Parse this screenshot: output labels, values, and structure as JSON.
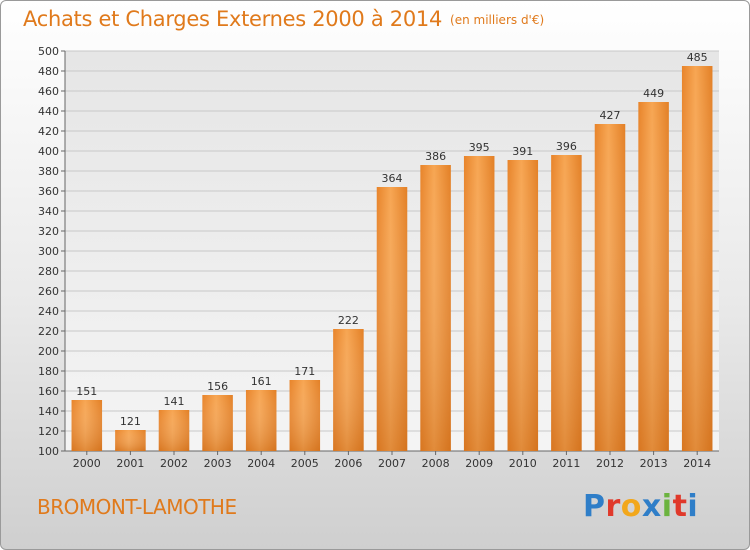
{
  "title": "Achats et Charges Externes 2000 à 2014",
  "unit_note": "(en milliers d'€)",
  "commune": "BROMONT-LAMOTHE",
  "logo": {
    "text": "Proxiti",
    "colors": [
      "#2f7ec8",
      "#e0392b",
      "#f2a71b",
      "#2f7ec8",
      "#6cb33f",
      "#e0392b",
      "#2f7ec8"
    ]
  },
  "colors": {
    "accent": "#e07a1c",
    "bar_light": "#f9ad5c",
    "bar_dark": "#d46a12",
    "grid": "#c8c8c8"
  },
  "chart_data": {
    "type": "bar",
    "categories": [
      "2000",
      "2001",
      "2002",
      "2003",
      "2004",
      "2005",
      "2006",
      "2007",
      "2008",
      "2009",
      "2010",
      "2011",
      "2012",
      "2013",
      "2014"
    ],
    "values": [
      151,
      121,
      141,
      156,
      161,
      171,
      222,
      364,
      386,
      395,
      391,
      396,
      427,
      449,
      485
    ],
    "ylim": [
      100,
      500
    ],
    "yticks": [
      100,
      120,
      140,
      160,
      180,
      200,
      220,
      240,
      260,
      280,
      300,
      320,
      340,
      360,
      380,
      400,
      420,
      440,
      460,
      480,
      500
    ],
    "grid": true,
    "data_labels": true
  }
}
